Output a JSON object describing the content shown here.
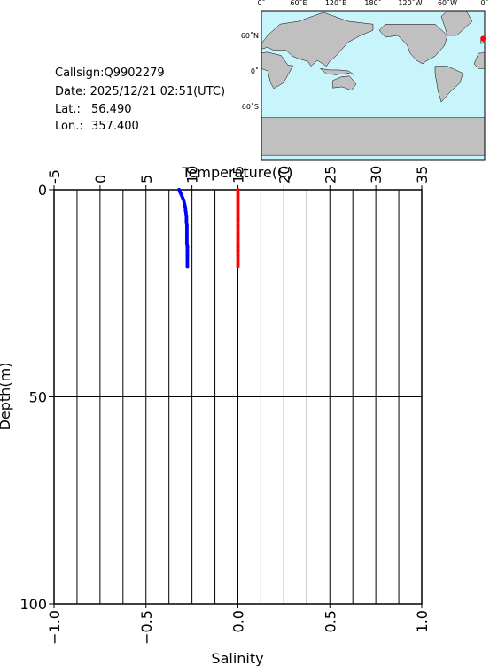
{
  "info": {
    "callsign": "Callsign:Q9902279",
    "date": "Date:  2025/12/21 02:51(UTC)",
    "lat_label": "Lat.:",
    "lat": "56.490",
    "lon_label": "Lon.:",
    "lon": "357.400"
  },
  "map": {
    "lon_labels": [
      "0˚",
      "60˚E",
      "120˚E",
      "180˚",
      "120˚W",
      "60˚W",
      "0˚"
    ],
    "lat_labels": [
      "60˚N",
      "0˚",
      "60˚S"
    ],
    "marker_color": "#ff0000"
  },
  "chart_data": {
    "type": "profile",
    "x_label": "Temperature(C)",
    "x2_label": "Salinity",
    "y_label": "Depth(m)",
    "xlim": [
      -5,
      35
    ],
    "xticks": [
      -5,
      0,
      5,
      10,
      15,
      20,
      25,
      30,
      35
    ],
    "x2lim": [
      -1,
      1
    ],
    "x2ticks": [
      {
        "value": -1,
        "label": "−1.0"
      },
      {
        "value": -0.5,
        "label": "−0.5"
      },
      {
        "value": 0,
        "label": "0.0"
      },
      {
        "value": 0.5,
        "label": "0.5"
      },
      {
        "value": 1,
        "label": "1.0"
      }
    ],
    "ylim": [
      0,
      100
    ],
    "yticks": [
      0,
      50,
      100
    ],
    "grid_x": [
      -2.5,
      0,
      2.5,
      5,
      7.5,
      10,
      12.5,
      15,
      17.5,
      20,
      22.5,
      25,
      27.5,
      30,
      32.5
    ],
    "depth": [
      0,
      0.5,
      1,
      1.5,
      2,
      2.5,
      3,
      3.5,
      4,
      4.5,
      5,
      5.5,
      6,
      6.5,
      7,
      7.5,
      8,
      8.5,
      9,
      9.5,
      10,
      10.5,
      11,
      11.5,
      12,
      12.5,
      13,
      13.5,
      14,
      14.5,
      15,
      15.5,
      16,
      16.5,
      17,
      17.5,
      18,
      18.5
    ],
    "series": [
      {
        "color": "#0000ff",
        "axis": "x",
        "values": [
          8.6,
          8.7,
          8.8,
          8.9,
          9.0,
          9.1,
          9.15,
          9.2,
          9.25,
          9.3,
          9.3,
          9.35,
          9.35,
          9.4,
          9.4,
          9.4,
          9.4,
          9.45,
          9.45,
          9.45,
          9.45,
          9.45,
          9.45,
          9.45,
          9.45,
          9.45,
          9.45,
          9.5,
          9.5,
          9.5,
          9.5,
          9.5,
          9.5,
          9.5,
          9.5,
          9.5,
          9.5,
          9.5
        ]
      },
      {
        "color": "#ff0000",
        "axis": "x2",
        "values": [
          0,
          0,
          0,
          0,
          0,
          0,
          0,
          0,
          0,
          0,
          0,
          0,
          0,
          0,
          0,
          0,
          0,
          0,
          0,
          0,
          0,
          0,
          0,
          0,
          0,
          0,
          0,
          0,
          0,
          0,
          0,
          0,
          0,
          0,
          0,
          0,
          0,
          0
        ]
      }
    ]
  }
}
